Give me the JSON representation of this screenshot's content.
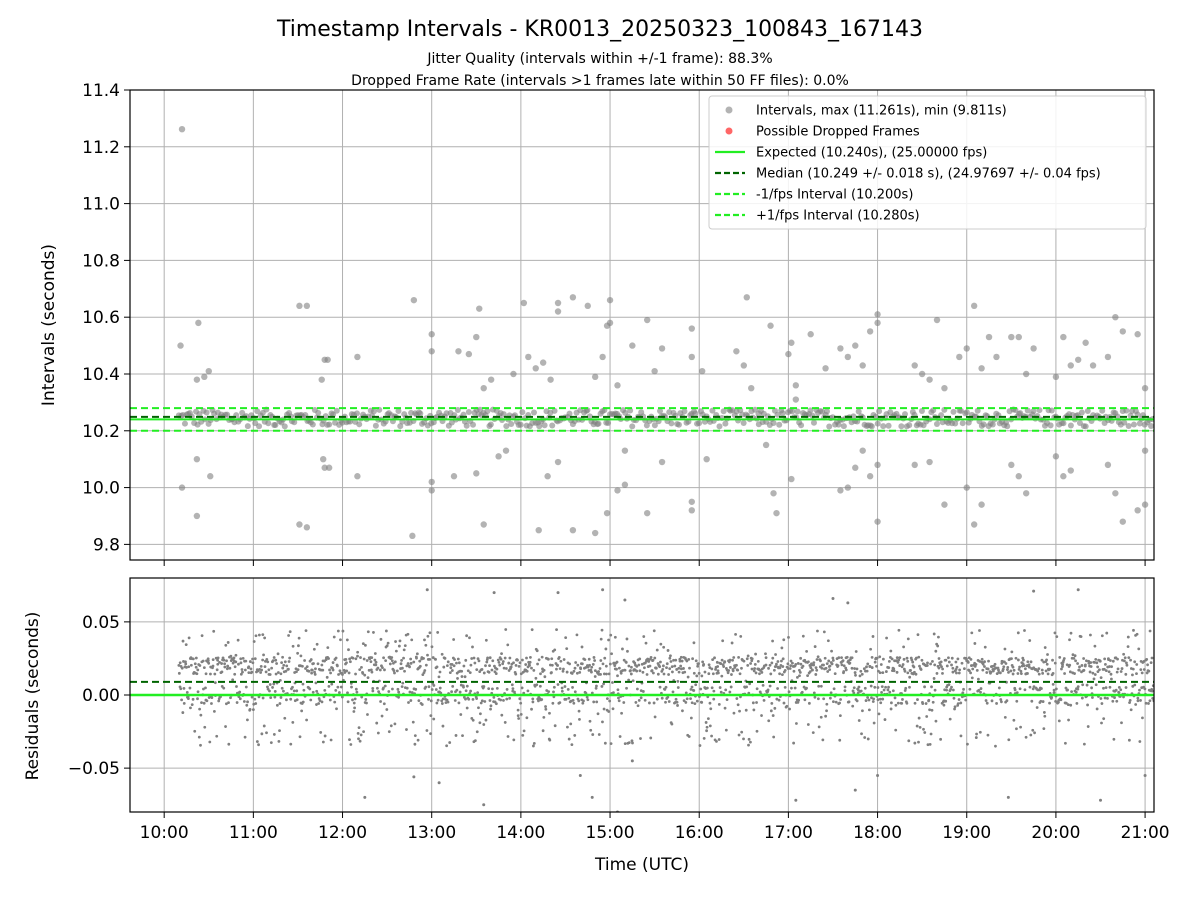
{
  "title": "Timestamp Intervals - KR0013_20250323_100843_167143",
  "subtitle_lines": [
    "Jitter Quality (intervals within +/-1 frame): 88.3%",
    "Dropped Frame Rate (intervals >1 frames late within 50 FF files): 0.0%"
  ],
  "colors": {
    "points": "#808080",
    "dropped": "#ff6666",
    "expected": "#22ee22",
    "median": "#006400",
    "fps_bounds": "#22ee22",
    "grid": "#b0b0b0"
  },
  "chart_data": [
    {
      "type": "scatter",
      "ylabel": "Intervals (seconds)",
      "xlabel": "",
      "xlim": [
        "09:37",
        "21:06"
      ],
      "ylim": [
        9.745,
        11.4
      ],
      "yticks": [
        9.8,
        10.0,
        10.2,
        10.4,
        10.6,
        10.8,
        11.0,
        11.2,
        11.4
      ],
      "ytick_labels": [
        "9.8",
        "10.0",
        "10.2",
        "10.4",
        "10.6",
        "10.8",
        "11.0",
        "11.2",
        "11.4"
      ],
      "grid": true,
      "legend_position": "top-right",
      "series": [
        {
          "name": "Intervals, max (11.261s), min (9.811s)",
          "kind": "points",
          "max": 11.261,
          "min": 9.811,
          "band_center": 10.245,
          "band_halfwidth": 0.03
        },
        {
          "name": "Possible Dropped Frames",
          "kind": "points",
          "values": []
        },
        {
          "name": "Expected (10.240s), (25.00000 fps)",
          "kind": "hline",
          "y": 10.24
        },
        {
          "name": "Median (10.249 +/- 0.018 s), (24.97697 +/- 0.04 fps)",
          "kind": "hline-dashed",
          "y": 10.249
        },
        {
          "name": "-1/fps Interval (10.200s)",
          "kind": "hline-dashed",
          "y": 10.2
        },
        {
          "name": "+1/fps Interval (10.280s)",
          "kind": "hline-dashed",
          "y": 10.28
        }
      ],
      "outliers": [
        [
          "10:12",
          11.262
        ],
        [
          "10:11",
          10.5
        ],
        [
          "10:23",
          10.58
        ],
        [
          "10:22",
          10.38
        ],
        [
          "10:27",
          10.39
        ],
        [
          "10:30",
          10.41
        ],
        [
          "10:12",
          10.0
        ],
        [
          "10:22",
          10.1
        ],
        [
          "10:31",
          10.04
        ],
        [
          "10:22",
          9.9
        ],
        [
          "11:31",
          10.64
        ],
        [
          "11:36",
          10.64
        ],
        [
          "11:31",
          9.87
        ],
        [
          "11:36",
          9.86
        ],
        [
          "11:48",
          10.45
        ],
        [
          "11:50",
          10.45
        ],
        [
          "11:46",
          10.38
        ],
        [
          "11:47",
          10.1
        ],
        [
          "11:48",
          10.07
        ],
        [
          "11:51",
          10.07
        ],
        [
          "12:10",
          10.46
        ],
        [
          "12:10",
          10.04
        ],
        [
          "12:48",
          10.66
        ],
        [
          "12:47",
          9.83
        ],
        [
          "13:00",
          10.54
        ],
        [
          "13:00",
          10.48
        ],
        [
          "13:00",
          10.02
        ],
        [
          "13:00",
          9.99
        ],
        [
          "13:15",
          10.04
        ],
        [
          "13:18",
          10.48
        ],
        [
          "13:25",
          10.47
        ],
        [
          "13:30",
          10.53
        ],
        [
          "13:32",
          10.63
        ],
        [
          "13:35",
          10.35
        ],
        [
          "13:40",
          10.38
        ],
        [
          "13:45",
          10.11
        ],
        [
          "13:50",
          10.13
        ],
        [
          "13:55",
          10.4
        ],
        [
          "13:30",
          10.05
        ],
        [
          "13:35",
          9.87
        ],
        [
          "14:02",
          10.65
        ],
        [
          "14:05",
          10.46
        ],
        [
          "14:10",
          10.42
        ],
        [
          "14:15",
          10.44
        ],
        [
          "14:20",
          10.38
        ],
        [
          "14:25",
          10.62
        ],
        [
          "14:25",
          10.65
        ],
        [
          "14:12",
          9.85
        ],
        [
          "14:18",
          10.04
        ],
        [
          "14:25",
          10.09
        ],
        [
          "14:35",
          10.67
        ],
        [
          "14:45",
          10.64
        ],
        [
          "14:50",
          10.39
        ],
        [
          "14:55",
          10.46
        ],
        [
          "14:58",
          10.57
        ],
        [
          "14:35",
          9.85
        ],
        [
          "14:50",
          9.84
        ],
        [
          "14:58",
          9.91
        ],
        [
          "15:00",
          10.58
        ],
        [
          "15:00",
          10.66
        ],
        [
          "15:05",
          10.36
        ],
        [
          "15:10",
          10.13
        ],
        [
          "15:15",
          10.5
        ],
        [
          "15:25",
          10.59
        ],
        [
          "15:30",
          10.41
        ],
        [
          "15:35",
          10.49
        ],
        [
          "15:05",
          9.99
        ],
        [
          "15:10",
          10.01
        ],
        [
          "15:25",
          9.91
        ],
        [
          "15:35",
          10.09
        ],
        [
          "15:55",
          10.56
        ],
        [
          "15:55",
          10.46
        ],
        [
          "15:55",
          9.95
        ],
        [
          "15:55",
          9.92
        ],
        [
          "16:02",
          10.41
        ],
        [
          "16:05",
          10.1
        ],
        [
          "16:25",
          10.48
        ],
        [
          "16:30",
          10.43
        ],
        [
          "16:32",
          10.67
        ],
        [
          "16:35",
          10.35
        ],
        [
          "16:40",
          10.26
        ],
        [
          "16:45",
          10.15
        ],
        [
          "16:48",
          10.57
        ],
        [
          "16:50",
          9.98
        ],
        [
          "16:52",
          9.91
        ],
        [
          "17:00",
          10.47
        ],
        [
          "17:02",
          10.51
        ],
        [
          "17:05",
          10.36
        ],
        [
          "17:05",
          10.31
        ],
        [
          "17:02",
          10.03
        ],
        [
          "17:15",
          10.54
        ],
        [
          "17:25",
          10.42
        ],
        [
          "17:35",
          10.49
        ],
        [
          "17:40",
          10.46
        ],
        [
          "17:45",
          10.5
        ],
        [
          "17:50",
          10.43
        ],
        [
          "17:55",
          10.55
        ],
        [
          "17:35",
          9.99
        ],
        [
          "17:40",
          10.0
        ],
        [
          "17:45",
          10.07
        ],
        [
          "17:50",
          10.13
        ],
        [
          "17:55",
          10.04
        ],
        [
          "18:00",
          10.61
        ],
        [
          "18:00",
          10.58
        ],
        [
          "18:00",
          10.08
        ],
        [
          "18:00",
          9.88
        ],
        [
          "18:25",
          10.43
        ],
        [
          "18:30",
          10.4
        ],
        [
          "18:35",
          10.38
        ],
        [
          "18:40",
          10.59
        ],
        [
          "18:45",
          10.35
        ],
        [
          "18:55",
          10.46
        ],
        [
          "18:25",
          10.08
        ],
        [
          "18:35",
          10.09
        ],
        [
          "18:45",
          9.94
        ],
        [
          "19:00",
          10.49
        ],
        [
          "19:05",
          10.64
        ],
        [
          "19:10",
          10.42
        ],
        [
          "19:15",
          10.53
        ],
        [
          "19:20",
          10.46
        ],
        [
          "19:00",
          10.0
        ],
        [
          "19:05",
          9.87
        ],
        [
          "19:10",
          9.94
        ],
        [
          "19:30",
          10.53
        ],
        [
          "19:35",
          10.53
        ],
        [
          "19:40",
          10.4
        ],
        [
          "19:45",
          10.49
        ],
        [
          "19:30",
          10.08
        ],
        [
          "19:35",
          10.04
        ],
        [
          "19:40",
          9.98
        ],
        [
          "20:00",
          10.39
        ],
        [
          "20:05",
          10.53
        ],
        [
          "20:10",
          10.43
        ],
        [
          "20:15",
          10.45
        ],
        [
          "20:00",
          10.11
        ],
        [
          "20:05",
          10.04
        ],
        [
          "20:10",
          10.06
        ],
        [
          "20:20",
          10.51
        ],
        [
          "20:25",
          10.43
        ],
        [
          "20:35",
          10.46
        ],
        [
          "20:40",
          10.6
        ],
        [
          "20:45",
          10.55
        ],
        [
          "20:35",
          10.08
        ],
        [
          "20:40",
          9.98
        ],
        [
          "20:45",
          9.88
        ],
        [
          "20:55",
          10.54
        ],
        [
          "21:00",
          10.35
        ],
        [
          "20:55",
          9.92
        ],
        [
          "21:00",
          10.13
        ],
        [
          "21:00",
          9.94
        ]
      ]
    },
    {
      "type": "scatter",
      "ylabel": "Residuals (seconds)",
      "xlabel": "Time (UTC)",
      "xlim": [
        "09:37",
        "21:06"
      ],
      "ylim": [
        -0.08,
        0.08
      ],
      "yticks": [
        -0.05,
        0.0,
        0.05
      ],
      "ytick_labels": [
        "−0.05",
        "0.00",
        "0.05"
      ],
      "xtick_labels": [
        "10:00",
        "11:00",
        "12:00",
        "13:00",
        "14:00",
        "15:00",
        "16:00",
        "17:00",
        "18:00",
        "19:00",
        "20:00",
        "21:00"
      ],
      "grid": true,
      "series": [
        {
          "name": "Residuals",
          "kind": "points",
          "band_range": [
            -0.035,
            0.045
          ],
          "max": 0.072,
          "min": -0.08
        },
        {
          "name": "Expected",
          "kind": "hline",
          "y": 0.0
        },
        {
          "name": "Median",
          "kind": "hline-dashed",
          "y": 0.009
        }
      ],
      "outliers": [
        [
          "12:57",
          0.072
        ],
        [
          "13:42",
          0.07
        ],
        [
          "14:25",
          0.07
        ],
        [
          "14:55",
          0.072
        ],
        [
          "15:10",
          0.065
        ],
        [
          "17:30",
          0.066
        ],
        [
          "17:40",
          0.063
        ],
        [
          "19:45",
          0.071
        ],
        [
          "20:15",
          0.072
        ],
        [
          "12:15",
          -0.07
        ],
        [
          "12:48",
          -0.056
        ],
        [
          "13:05",
          -0.06
        ],
        [
          "13:35",
          -0.075
        ],
        [
          "14:40",
          -0.055
        ],
        [
          "14:48",
          -0.07
        ],
        [
          "15:05",
          -0.08
        ],
        [
          "15:15",
          -0.045
        ],
        [
          "17:05",
          -0.072
        ],
        [
          "17:45",
          -0.065
        ],
        [
          "18:00",
          -0.055
        ],
        [
          "19:28",
          -0.07
        ],
        [
          "20:30",
          -0.072
        ],
        [
          "21:00",
          -0.055
        ]
      ]
    }
  ]
}
